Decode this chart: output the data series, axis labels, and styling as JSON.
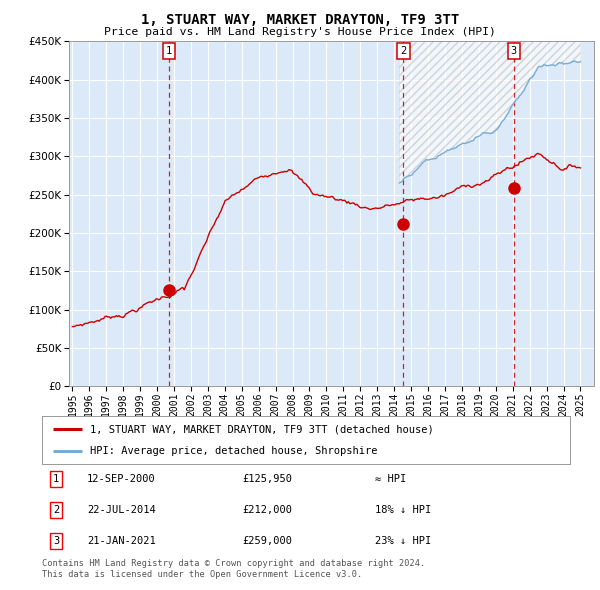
{
  "title": "1, STUART WAY, MARKET DRAYTON, TF9 3TT",
  "subtitle": "Price paid vs. HM Land Registry's House Price Index (HPI)",
  "legend_line1": "1, STUART WAY, MARKET DRAYTON, TF9 3TT (detached house)",
  "legend_line2": "HPI: Average price, detached house, Shropshire",
  "sale1_label": "1",
  "sale1_date": "12-SEP-2000",
  "sale1_price": "£125,950",
  "sale1_vs": "≈ HPI",
  "sale2_label": "2",
  "sale2_date": "22-JUL-2014",
  "sale2_price": "£212,000",
  "sale2_vs": "18% ↓ HPI",
  "sale3_label": "3",
  "sale3_date": "21-JAN-2021",
  "sale3_price": "£259,000",
  "sale3_vs": "23% ↓ HPI",
  "footer1": "Contains HM Land Registry data © Crown copyright and database right 2024.",
  "footer2": "This data is licensed under the Open Government Licence v3.0.",
  "bg_color": "#dce9f8",
  "red_color": "#cc0000",
  "blue_color": "#7aadd4",
  "grid_color": "#ffffff",
  "vline_color": "#cc0000",
  "ylim": [
    0,
    450000
  ],
  "yticks": [
    0,
    50000,
    100000,
    150000,
    200000,
    250000,
    300000,
    350000,
    400000,
    450000
  ],
  "sale1_x": 2000.71,
  "sale1_y": 125950,
  "sale2_x": 2014.55,
  "sale2_y": 212000,
  "sale3_x": 2021.05,
  "sale3_y": 259000,
  "xmin": 1994.8,
  "xmax": 2025.8
}
